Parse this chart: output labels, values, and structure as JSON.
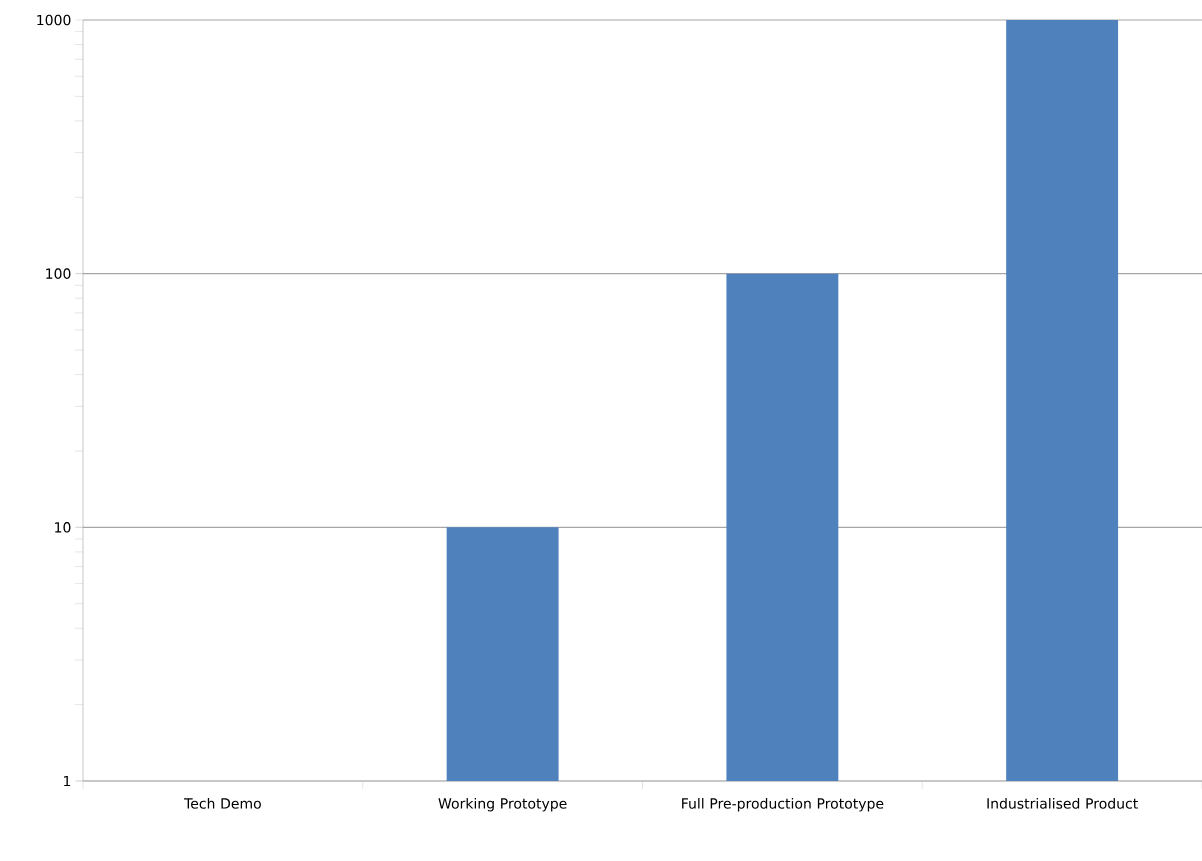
{
  "chart_data": {
    "type": "bar",
    "categories": [
      "Tech Demo",
      "Working Prototype",
      "Full Pre-production Prototype",
      "Industrialised Product"
    ],
    "values": [
      1,
      10,
      100,
      1000
    ],
    "color": "#4f81bd",
    "log": "y",
    "ylim": [
      1,
      1000
    ],
    "yticks": [
      1,
      10,
      100,
      1000
    ],
    "grid": "y"
  }
}
